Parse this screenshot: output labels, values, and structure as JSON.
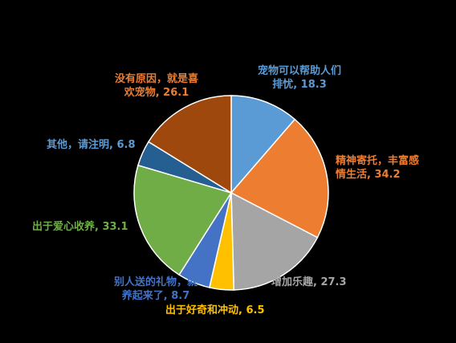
{
  "chart_data": {
    "type": "pie",
    "title": "",
    "slices": [
      {
        "label": "宠物可以帮助人们排忧",
        "value": 18.3,
        "color": "#5b9bd5"
      },
      {
        "label": "精神寄托，丰富感情生活",
        "value": 34.2,
        "color": "#ed7d31"
      },
      {
        "label": "增加乐趣",
        "value": 27.3,
        "color": "#a5a5a5"
      },
      {
        "label": "出于好奇和冲动",
        "value": 6.5,
        "color": "#ffc000"
      },
      {
        "label": "别人送的礼物，就养起来了",
        "value": 8.7,
        "color": "#4472c4"
      },
      {
        "label": "出于爱心收养",
        "value": 33.1,
        "color": "#70ad47"
      },
      {
        "label": "其他，请注明",
        "value": 6.8,
        "color": "#255e91"
      },
      {
        "label": "没有原因，就是喜欢宠物",
        "value": 26.1,
        "color": "#9e480e"
      }
    ],
    "data_labels": [
      {
        "line1": "宠物可以帮助人们",
        "line2": "排忧, 18.3"
      },
      {
        "line1": "精神寄托，丰富感",
        "line2": "情生活, 34.2"
      },
      {
        "line1": "增加乐趣, 27.3",
        "line2": ""
      },
      {
        "line1": "出于好奇和冲动, 6.5",
        "line2": ""
      },
      {
        "line1": "别人送的礼物，就",
        "line2": "养起来了, 8.7"
      },
      {
        "line1": "出于爱心收养, 33.1",
        "line2": ""
      },
      {
        "line1": "其他，请注明, 6.8",
        "line2": ""
      },
      {
        "line1": "没有原因，就是喜",
        "line2": "欢宠物, 26.1"
      }
    ]
  }
}
